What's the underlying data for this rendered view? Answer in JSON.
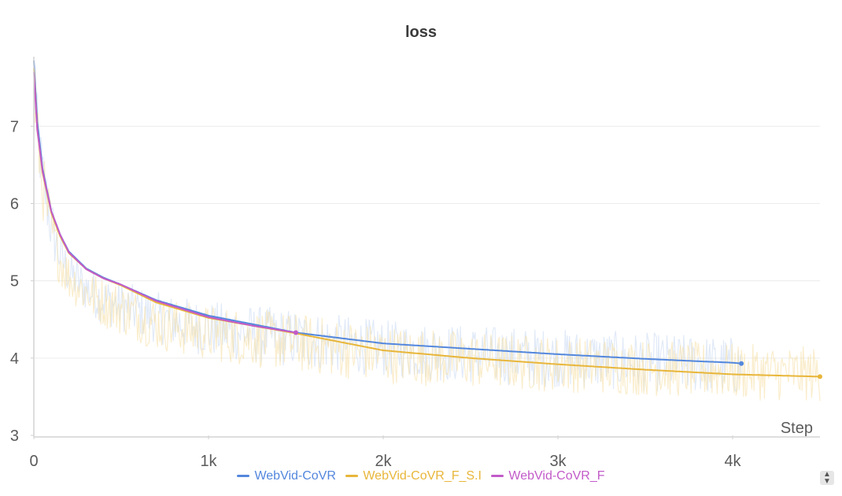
{
  "chart_data": {
    "type": "line",
    "title": "loss",
    "xlabel": "Step",
    "ylabel": "",
    "xlim": [
      0,
      4500
    ],
    "ylim": [
      3,
      7.9
    ],
    "x_ticks": [
      0,
      1000,
      2000,
      3000,
      4000
    ],
    "x_tick_labels": [
      "0",
      "1k",
      "2k",
      "3k",
      "4k"
    ],
    "y_ticks": [
      3,
      4,
      5,
      6,
      7
    ],
    "y_tick_labels": [
      "3",
      "4",
      "5",
      "6",
      "7"
    ],
    "grid": true,
    "legend_position": "bottom",
    "series": [
      {
        "name": "WebVid-CoVR",
        "color": "#5387dd",
        "x": [
          0,
          20,
          50,
          100,
          150,
          200,
          300,
          400,
          500,
          700,
          1000,
          1500,
          2000,
          2500,
          3000,
          3500,
          4000,
          4050
        ],
        "y": [
          7.85,
          7.05,
          6.45,
          5.9,
          5.6,
          5.38,
          5.16,
          5.04,
          4.95,
          4.75,
          4.55,
          4.33,
          4.19,
          4.12,
          4.05,
          3.99,
          3.94,
          3.93
        ],
        "raw_low": [
          7.0,
          6.3,
          5.7,
          5.1,
          4.85,
          4.65,
          4.45,
          4.3,
          4.2,
          4.05,
          3.85,
          3.7,
          3.6,
          3.5,
          3.45,
          3.4,
          3.35,
          3.35
        ],
        "raw_high": [
          7.9,
          7.6,
          7.0,
          6.3,
          5.8,
          5.55,
          5.35,
          5.2,
          5.15,
          5.0,
          4.9,
          4.8,
          4.65,
          4.6,
          4.55,
          4.5,
          4.45,
          4.4
        ]
      },
      {
        "name": "WebVid-CoVR_F_S.I",
        "color": "#e8b63a",
        "x": [
          0,
          20,
          50,
          100,
          150,
          200,
          300,
          400,
          500,
          700,
          1000,
          1500,
          2000,
          2500,
          3000,
          3500,
          4000,
          4500
        ],
        "y": [
          7.75,
          6.95,
          6.4,
          5.88,
          5.58,
          5.36,
          5.15,
          5.03,
          4.94,
          4.72,
          4.52,
          4.32,
          4.1,
          4.0,
          3.92,
          3.85,
          3.79,
          3.76
        ],
        "raw_low": [
          6.9,
          6.2,
          5.6,
          5.05,
          4.8,
          4.6,
          4.4,
          4.25,
          4.15,
          3.95,
          3.8,
          3.65,
          3.5,
          3.45,
          3.4,
          3.35,
          3.3,
          3.28
        ],
        "raw_high": [
          7.8,
          7.5,
          6.9,
          6.25,
          5.75,
          5.5,
          5.3,
          5.18,
          5.12,
          4.95,
          4.85,
          4.75,
          4.6,
          4.5,
          4.45,
          4.4,
          4.35,
          4.3
        ]
      },
      {
        "name": "WebVid-CoVR_F",
        "color": "#c25bc9",
        "x": [
          0,
          20,
          50,
          100,
          150,
          200,
          300,
          400,
          500,
          700,
          1000,
          1250,
          1500
        ],
        "y": [
          7.7,
          6.95,
          6.42,
          5.9,
          5.6,
          5.37,
          5.15,
          5.03,
          4.95,
          4.74,
          4.53,
          4.42,
          4.33
        ]
      }
    ]
  },
  "legend": {
    "items": [
      {
        "label": "WebVid-CoVR",
        "color": "#5387dd"
      },
      {
        "label": "WebVid-CoVR_F_S.I",
        "color": "#e8b63a"
      },
      {
        "label": "WebVid-CoVR_F",
        "color": "#c25bc9"
      }
    ]
  },
  "controls": {
    "sort_icon": "sort-updown-icon"
  }
}
